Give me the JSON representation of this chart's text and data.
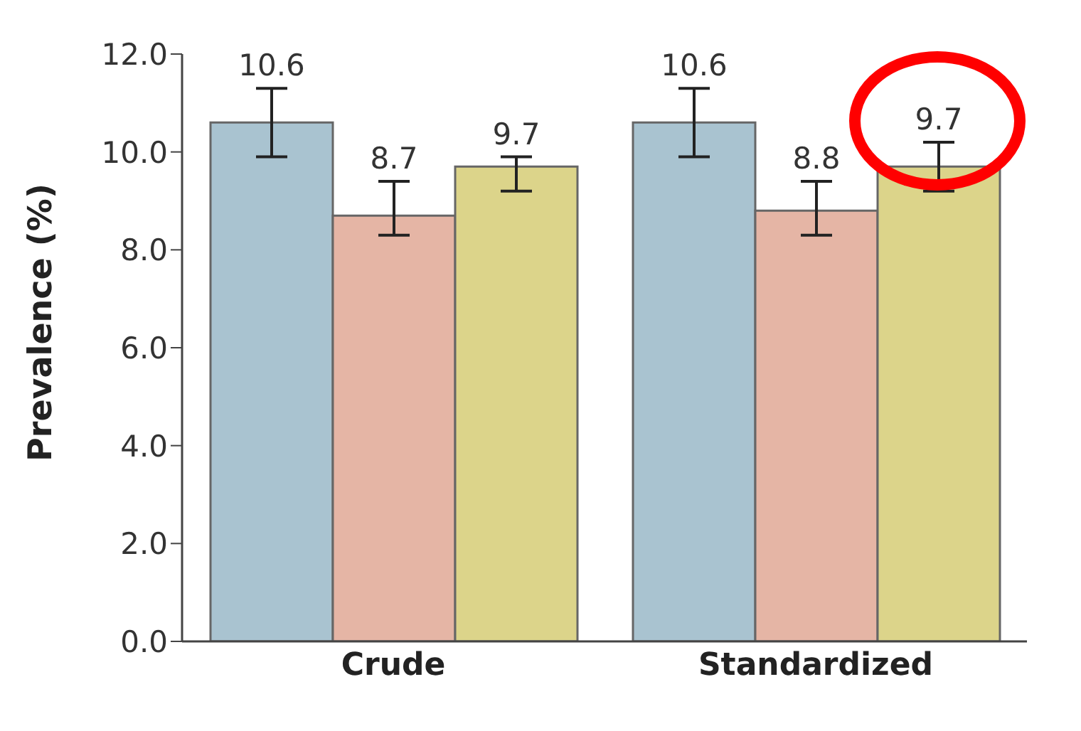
{
  "chart_data": {
    "type": "bar",
    "ylabel": "Prevalence (%)",
    "categories": [
      "Crude",
      "Standardized"
    ],
    "series": [
      {
        "color": "#a9c3d0",
        "values": [
          10.6,
          10.6
        ],
        "errors": [
          [
            9.9,
            11.3
          ],
          [
            9.9,
            11.3
          ]
        ]
      },
      {
        "color": "#e5b5a5",
        "values": [
          8.7,
          8.8
        ],
        "errors": [
          [
            8.3,
            9.4
          ],
          [
            8.3,
            9.4
          ]
        ]
      },
      {
        "color": "#dcd48a",
        "values": [
          9.7,
          9.7
        ],
        "errors": [
          [
            9.2,
            9.9
          ],
          [
            9.2,
            10.2
          ]
        ]
      }
    ],
    "ylim": [
      0,
      12
    ],
    "yticks": [
      {
        "value": 0,
        "label": "0.0"
      },
      {
        "value": 2,
        "label": "2.0"
      },
      {
        "value": 4,
        "label": "4.0"
      },
      {
        "value": 6,
        "label": "6.0"
      },
      {
        "value": 8,
        "label": "8.0"
      },
      {
        "value": 10,
        "label": "10.0"
      },
      {
        "value": 12,
        "label": "12.0"
      }
    ],
    "grid": false,
    "legend": false,
    "data_labels": true
  }
}
